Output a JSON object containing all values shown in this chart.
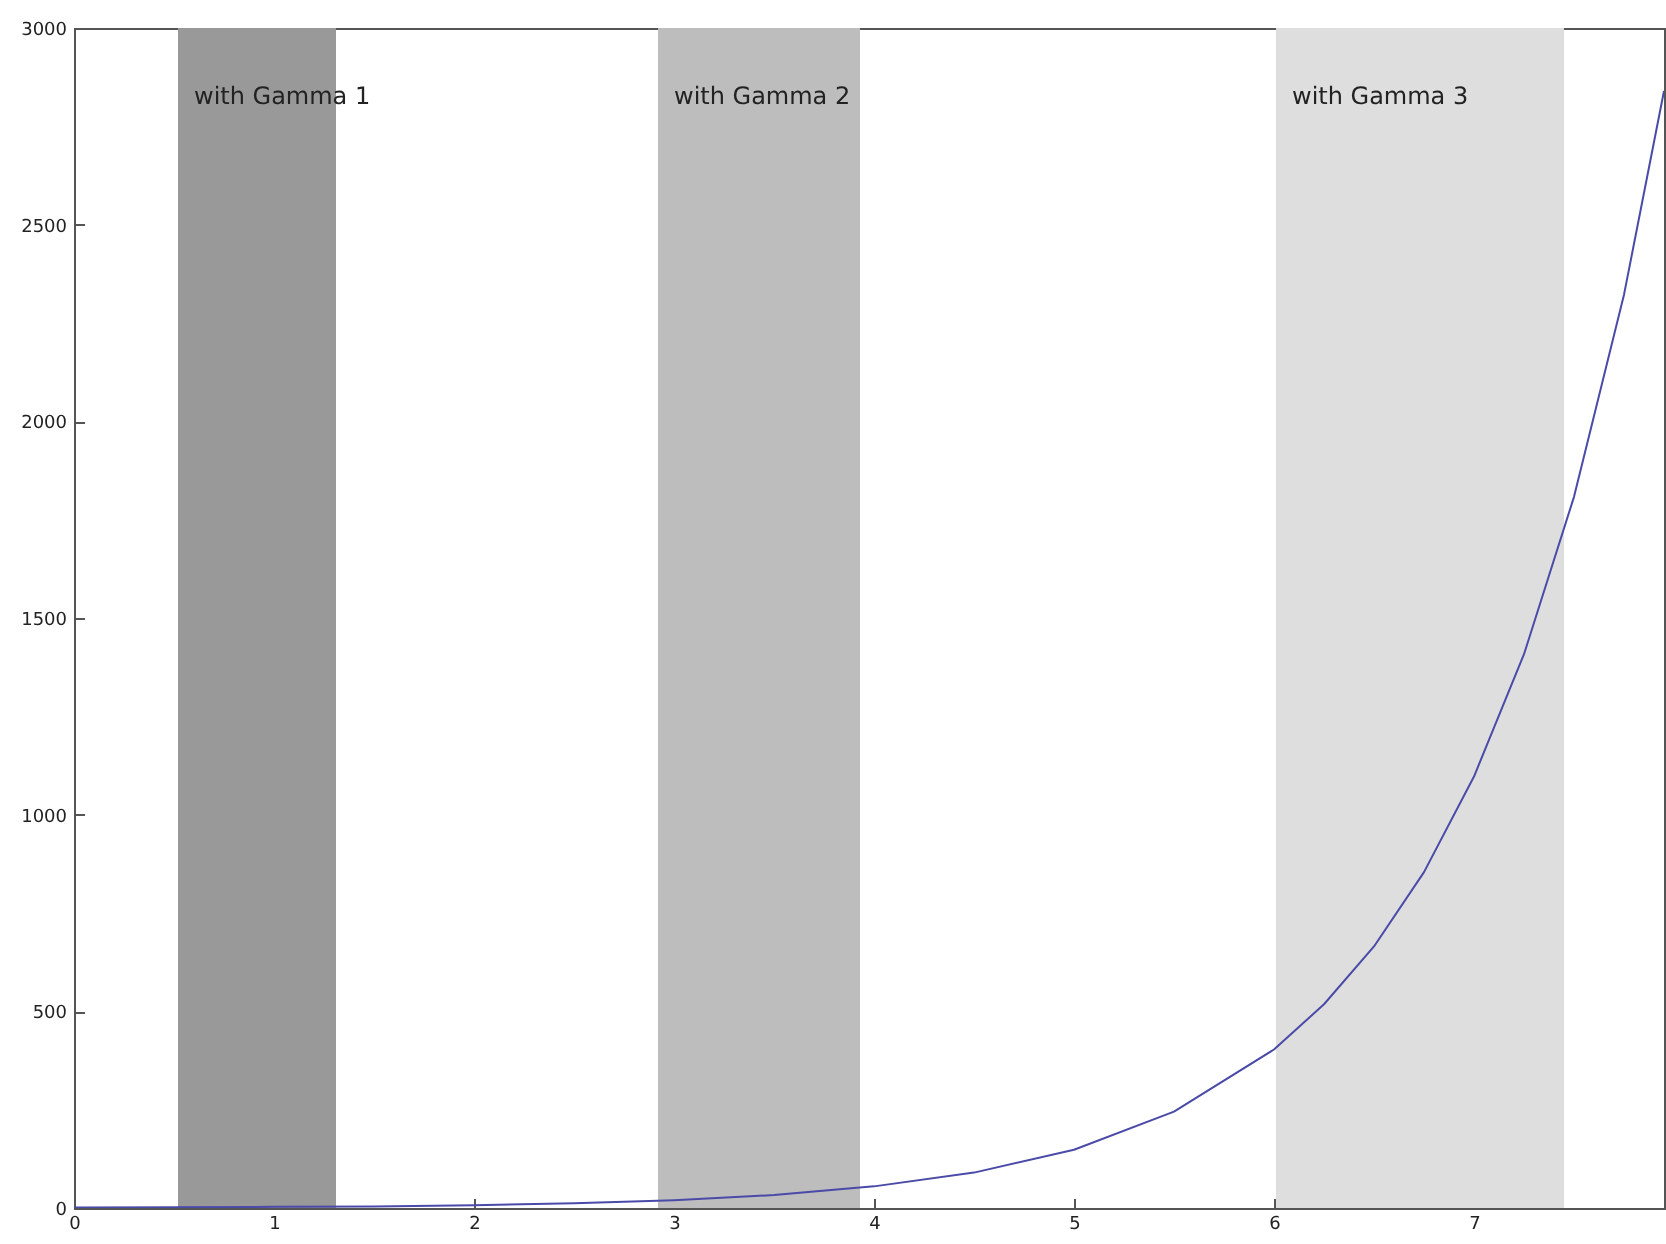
{
  "chart_data": {
    "type": "line",
    "x": [
      0,
      0.5,
      1,
      1.5,
      2,
      2.5,
      3,
      3.5,
      4,
      4.5,
      5,
      5.5,
      6,
      6.25,
      6.5,
      6.75,
      7,
      7.25,
      7.5,
      7.75,
      7.95
    ],
    "series": [
      {
        "color": "#4a4aa8",
        "values": [
          1,
          2,
          3,
          4,
          7,
          12,
          20,
          33,
          55,
          90,
          148,
          245,
          403,
          518,
          665,
          854,
          1097,
          1408,
          1808,
          2322,
          2840
        ]
      }
    ],
    "xlim": [
      0,
      7.95
    ],
    "xticks": [
      0,
      1,
      2,
      3,
      4,
      5,
      6,
      7
    ],
    "ylim": [
      0,
      3000
    ],
    "yticks": [
      0,
      500,
      1000,
      1500,
      2000,
      2500,
      3000
    ],
    "bands": [
      {
        "axis": "x",
        "from": 0.52,
        "to": 1.31,
        "label": "with Gamma 1",
        "color": "#999999"
      },
      {
        "axis": "x",
        "from": 2.92,
        "to": 3.93,
        "label": "with Gamma 2",
        "color": "#bdbdbd"
      },
      {
        "axis": "x",
        "from": 6.01,
        "to": 7.45,
        "label": "with Gamma 3",
        "color": "#dedede"
      }
    ],
    "grid": false
  }
}
